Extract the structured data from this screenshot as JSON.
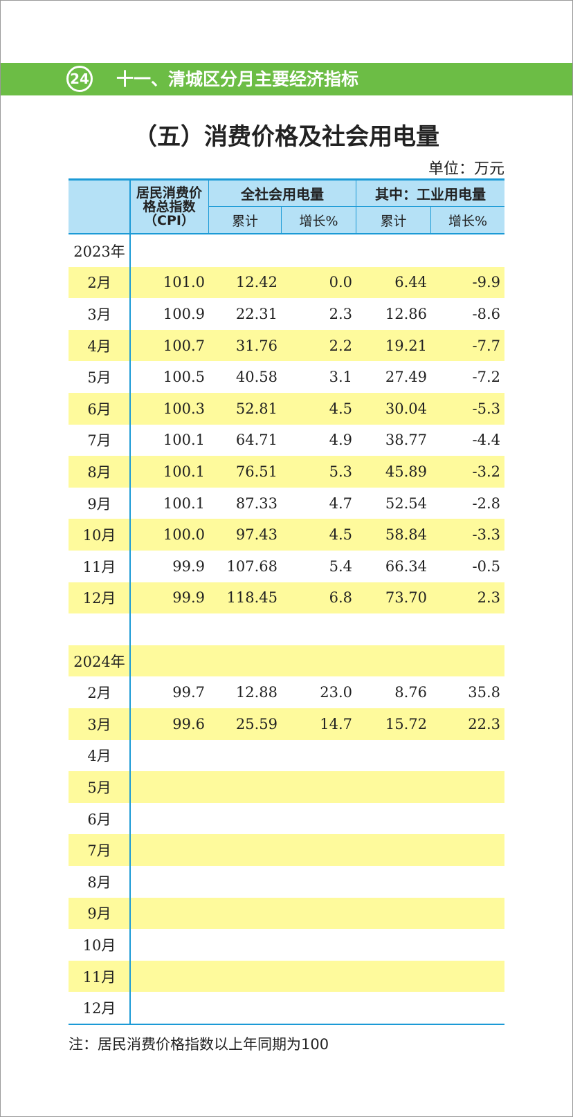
{
  "header": {
    "page_number": "24",
    "title": "十一、清城区分月主要经济指标"
  },
  "table_title": "（五）消费价格及社会用电量",
  "unit": "单位：万元",
  "table": {
    "columns": {
      "cpi": "居民消费价格总指数（CPI）",
      "power_total": "全社会用电量",
      "power_industry": "其中：工业用电量",
      "sub": [
        "累计",
        "增长%",
        "累计",
        "增长%"
      ]
    },
    "sections": [
      {
        "year": "2023年",
        "rows": [
          {
            "month": "2月",
            "values": [
              "101.0",
              "12.42",
              "0.0",
              "6.44",
              "-9.9"
            ]
          },
          {
            "month": "3月",
            "values": [
              "100.9",
              "22.31",
              "2.3",
              "12.86",
              "-8.6"
            ]
          },
          {
            "month": "4月",
            "values": [
              "100.7",
              "31.76",
              "2.2",
              "19.21",
              "-7.7"
            ]
          },
          {
            "month": "5月",
            "values": [
              "100.5",
              "40.58",
              "3.1",
              "27.49",
              "-7.2"
            ]
          },
          {
            "month": "6月",
            "values": [
              "100.3",
              "52.81",
              "4.5",
              "30.04",
              "-5.3"
            ]
          },
          {
            "month": "7月",
            "values": [
              "100.1",
              "64.71",
              "4.9",
              "38.77",
              "-4.4"
            ]
          },
          {
            "month": "8月",
            "values": [
              "100.1",
              "76.51",
              "5.3",
              "45.89",
              "-3.2"
            ]
          },
          {
            "month": "9月",
            "values": [
              "100.1",
              "87.33",
              "4.7",
              "52.54",
              "-2.8"
            ]
          },
          {
            "month": "10月",
            "values": [
              "100.0",
              "97.43",
              "4.5",
              "58.84",
              "-3.3"
            ]
          },
          {
            "month": "11月",
            "values": [
              "99.9",
              "107.68",
              "5.4",
              "66.34",
              "-0.5"
            ]
          },
          {
            "month": "12月",
            "values": [
              "99.9",
              "118.45",
              "6.8",
              "73.70",
              "2.3"
            ]
          }
        ]
      },
      {
        "year": "2024年",
        "rows": [
          {
            "month": "2月",
            "values": [
              "99.7",
              "12.88",
              "23.0",
              "8.76",
              "35.8"
            ]
          },
          {
            "month": "3月",
            "values": [
              "99.6",
              "25.59",
              "14.7",
              "15.72",
              "22.3"
            ]
          },
          {
            "month": "4月"
          },
          {
            "month": "5月"
          },
          {
            "month": "6月"
          },
          {
            "month": "7月"
          },
          {
            "month": "8月"
          },
          {
            "month": "9月"
          },
          {
            "month": "10月"
          },
          {
            "month": "11月"
          },
          {
            "month": "12月"
          }
        ]
      }
    ]
  },
  "note": "注：居民消费价格指数以上年同期为100"
}
